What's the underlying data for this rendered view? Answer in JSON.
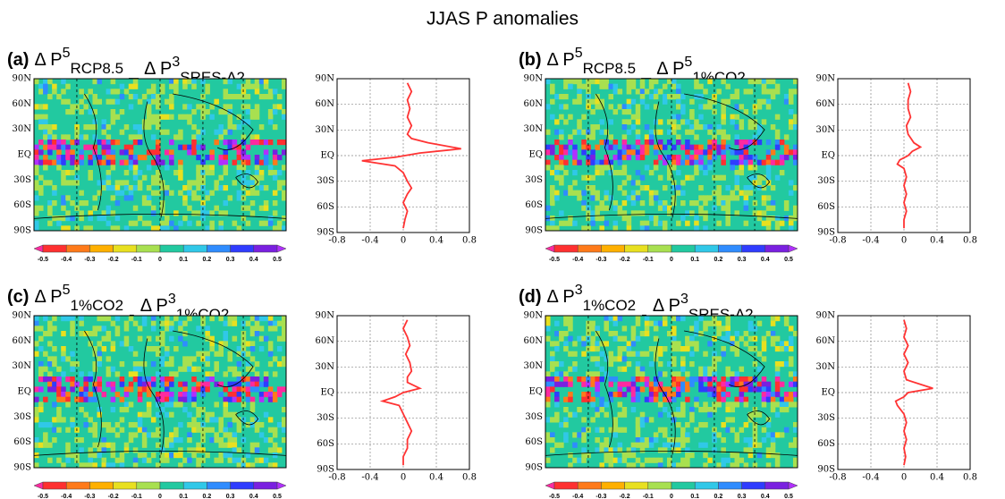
{
  "title": "JJAS P anomalies",
  "chart_data": [
    {
      "type": "line",
      "label": "(a)",
      "operator": "–",
      "terms": [
        {
          "symbol": "Δ P",
          "sup": "5",
          "sub": "RCP8.5"
        },
        {
          "symbol": "Δ P",
          "sup": "3",
          "sub": "SRES-A2"
        }
      ],
      "latitudes": [
        85,
        75,
        65,
        55,
        45,
        35,
        25,
        20,
        15,
        8,
        3,
        -2,
        -6,
        -12,
        -20,
        -30,
        -38,
        -45,
        -55,
        -65,
        -75,
        -85
      ],
      "values": [
        0.05,
        0.1,
        0.05,
        0.08,
        0.05,
        0.1,
        0.05,
        0.1,
        0.3,
        0.7,
        0.2,
        -0.1,
        -0.5,
        -0.1,
        0,
        0.05,
        0.1,
        0.05,
        0,
        0.05,
        0.02,
        0
      ],
      "color": "#ff3333",
      "xlim": [
        -0.8,
        0.8
      ],
      "xticks": [
        -0.8,
        -0.4,
        0,
        0.4,
        0.8
      ],
      "ylim": [
        -90,
        90
      ],
      "yticks": [
        {
          "value": 90,
          "label": "90N"
        },
        {
          "value": 60,
          "label": "60N"
        },
        {
          "value": 30,
          "label": "30N"
        },
        {
          "value": 0,
          "label": "EQ"
        },
        {
          "value": -30,
          "label": "30S"
        },
        {
          "value": -60,
          "label": "60S"
        },
        {
          "value": -90,
          "label": "90S"
        }
      ],
      "grid": true,
      "colorbar_ticks": [
        -0.5,
        -0.4,
        -0.3,
        -0.2,
        -0.1,
        0,
        0.1,
        0.2,
        0.3,
        0.4,
        0.5
      ],
      "colorbar_colors": [
        "#ff2aa0",
        "#ff3030",
        "#ff7a1a",
        "#ffb000",
        "#e8e020",
        "#a8e050",
        "#22c9a0",
        "#30c8e8",
        "#2f8cff",
        "#2f3cff",
        "#7a20e0",
        "#b030ff"
      ]
    },
    {
      "type": "line",
      "label": "(b)",
      "operator": "–",
      "terms": [
        {
          "symbol": "Δ P",
          "sup": "5",
          "sub": "RCP8.5"
        },
        {
          "symbol": "Δ P",
          "sup": "5",
          "sub": "1%CO2"
        }
      ],
      "latitudes": [
        85,
        75,
        65,
        55,
        45,
        35,
        25,
        15,
        10,
        5,
        0,
        -5,
        -10,
        -15,
        -25,
        -35,
        -45,
        -55,
        -65,
        -75,
        -85
      ],
      "values": [
        0.05,
        0.08,
        0.05,
        0.05,
        0.08,
        0.03,
        0.05,
        0.12,
        0.2,
        0.1,
        0.05,
        -0.05,
        -0.08,
        0,
        0.03,
        0,
        0.03,
        0,
        0.03,
        0,
        0
      ],
      "color": "#ff3333",
      "xlim": [
        -0.8,
        0.8
      ],
      "xticks": [
        -0.8,
        -0.4,
        0,
        0.4,
        0.8
      ],
      "ylim": [
        -90,
        90
      ],
      "yticks": [
        {
          "value": 90,
          "label": "90N"
        },
        {
          "value": 60,
          "label": "60N"
        },
        {
          "value": 30,
          "label": "30N"
        },
        {
          "value": 0,
          "label": "EQ"
        },
        {
          "value": -30,
          "label": "30S"
        },
        {
          "value": -60,
          "label": "60S"
        },
        {
          "value": -90,
          "label": "90S"
        }
      ],
      "grid": true,
      "colorbar_ticks": [
        -0.5,
        -0.4,
        -0.3,
        -0.2,
        -0.1,
        0,
        0.1,
        0.2,
        0.3,
        0.4,
        0.5
      ],
      "colorbar_colors": [
        "#ff2aa0",
        "#ff3030",
        "#ff7a1a",
        "#ffb000",
        "#e8e020",
        "#a8e050",
        "#22c9a0",
        "#30c8e8",
        "#2f8cff",
        "#2f3cff",
        "#7a20e0",
        "#b030ff"
      ]
    },
    {
      "type": "line",
      "label": "(c)",
      "operator": "-",
      "terms": [
        {
          "symbol": "Δ P",
          "sup": "5",
          "sub": "1%CO2"
        },
        {
          "symbol": "Δ P",
          "sup": "3",
          "sub": "1%CO2"
        }
      ],
      "latitudes": [
        85,
        75,
        65,
        55,
        45,
        35,
        25,
        18,
        12,
        5,
        0,
        -5,
        -10,
        -15,
        -25,
        -35,
        -45,
        -55,
        -65,
        -75,
        -85
      ],
      "values": [
        0.05,
        0,
        0.05,
        0.08,
        0.03,
        0.08,
        0.1,
        0.05,
        0.05,
        0.2,
        0,
        -0.1,
        -0.25,
        -0.05,
        0,
        0.05,
        0.1,
        0.05,
        0.05,
        0,
        0
      ],
      "color": "#ff3333",
      "xlim": [
        -0.8,
        0.8
      ],
      "xticks": [
        -0.8,
        -0.4,
        0,
        0.4,
        0.8
      ],
      "ylim": [
        -90,
        90
      ],
      "yticks": [
        {
          "value": 90,
          "label": "90N"
        },
        {
          "value": 60,
          "label": "60N"
        },
        {
          "value": 30,
          "label": "30N"
        },
        {
          "value": 0,
          "label": "EQ"
        },
        {
          "value": -30,
          "label": "30S"
        },
        {
          "value": -60,
          "label": "60S"
        },
        {
          "value": -90,
          "label": "90S"
        }
      ],
      "grid": true,
      "colorbar_ticks": [
        -0.5,
        -0.4,
        -0.3,
        -0.2,
        -0.1,
        0,
        0.1,
        0.2,
        0.3,
        0.4,
        0.5
      ],
      "colorbar_colors": [
        "#ff2aa0",
        "#ff3030",
        "#ff7a1a",
        "#ffb000",
        "#e8e020",
        "#a8e050",
        "#22c9a0",
        "#30c8e8",
        "#2f8cff",
        "#2f3cff",
        "#7a20e0",
        "#b030ff"
      ]
    },
    {
      "type": "line",
      "label": "(d)",
      "operator": "-",
      "terms": [
        {
          "symbol": "Δ P",
          "sup": "3",
          "sub": "1%CO2"
        },
        {
          "symbol": "Δ P",
          "sup": "3",
          "sub": "SRES-A2"
        }
      ],
      "latitudes": [
        85,
        75,
        65,
        55,
        45,
        35,
        25,
        15,
        5,
        0,
        -5,
        -10,
        -15,
        -25,
        -35,
        -45,
        -55,
        -65,
        -75,
        -85
      ],
      "values": [
        0,
        0.03,
        0,
        0.05,
        0,
        0.05,
        0,
        0.03,
        0.35,
        0.05,
        0,
        -0.1,
        -0.08,
        0,
        0.03,
        0,
        0.03,
        0,
        0.02,
        0
      ],
      "color": "#ff3333",
      "xlim": [
        -0.8,
        0.8
      ],
      "xticks": [
        -0.8,
        -0.4,
        0,
        0.4,
        0.8
      ],
      "ylim": [
        -90,
        90
      ],
      "yticks": [
        {
          "value": 90,
          "label": "90N"
        },
        {
          "value": 60,
          "label": "60N"
        },
        {
          "value": 30,
          "label": "30N"
        },
        {
          "value": 0,
          "label": "EQ"
        },
        {
          "value": -30,
          "label": "30S"
        },
        {
          "value": -60,
          "label": "60S"
        },
        {
          "value": -90,
          "label": "90S"
        }
      ],
      "grid": true,
      "colorbar_ticks": [
        -0.5,
        -0.4,
        -0.3,
        -0.2,
        -0.1,
        0,
        0.1,
        0.2,
        0.3,
        0.4,
        0.5
      ],
      "colorbar_colors": [
        "#ff2aa0",
        "#ff3030",
        "#ff7a1a",
        "#ffb000",
        "#e8e020",
        "#a8e050",
        "#22c9a0",
        "#30c8e8",
        "#2f8cff",
        "#2f3cff",
        "#7a20e0",
        "#b030ff"
      ]
    }
  ]
}
